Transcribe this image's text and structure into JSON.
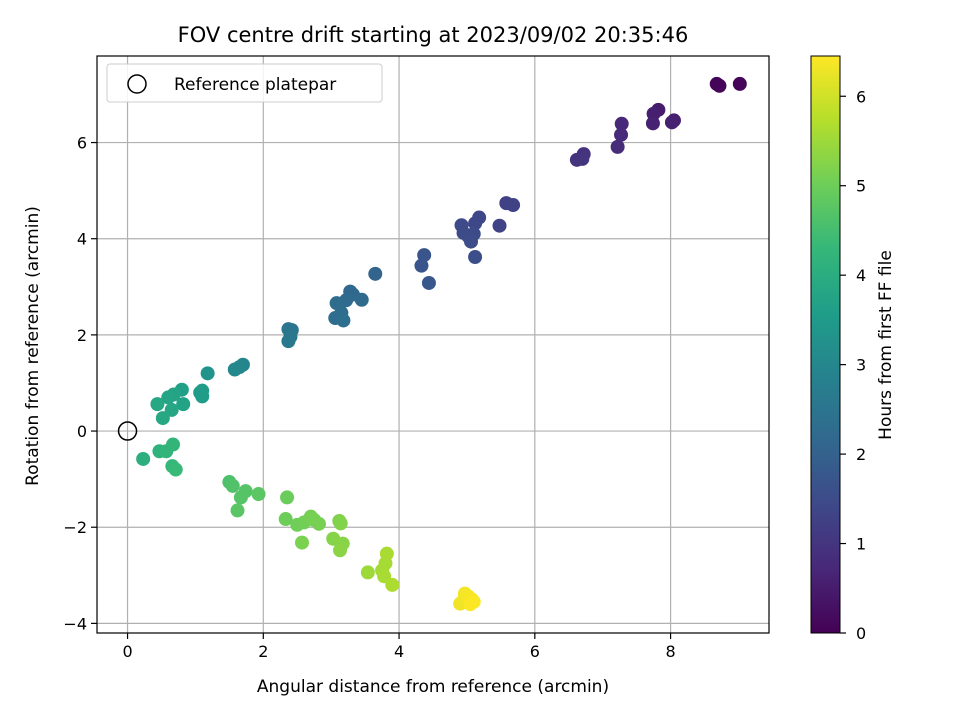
{
  "chart_data": {
    "type": "scatter",
    "title": "FOV centre drift starting at 2023/09/02 20:35:46",
    "xlabel": "Angular distance from reference (arcmin)",
    "ylabel": "Rotation from reference (arcmin)",
    "xlim": [
      -0.45,
      9.45
    ],
    "ylim": [
      -4.2,
      7.8
    ],
    "xticks": [
      0,
      2,
      4,
      6,
      8
    ],
    "yticks": [
      -4,
      -2,
      0,
      2,
      4,
      6
    ],
    "grid": true,
    "legend": {
      "label": "Reference platepar",
      "placement": "top-left"
    },
    "reference_point": {
      "x": 0,
      "y": 0
    },
    "colorbar": {
      "label": "Hours from first FF file",
      "range": [
        0,
        6.45
      ],
      "ticks": [
        0,
        1,
        2,
        3,
        4,
        5,
        6
      ],
      "colormap": "viridis",
      "stops": [
        "#440154",
        "#482878",
        "#3e4989",
        "#31688e",
        "#26828e",
        "#1f9e89",
        "#35b779",
        "#6ece58",
        "#b5de2b",
        "#fde725"
      ]
    },
    "points": [
      {
        "x": 8.68,
        "y": 7.22,
        "t": 0.05
      },
      {
        "x": 8.72,
        "y": 7.18,
        "t": 0.08
      },
      {
        "x": 9.02,
        "y": 7.22,
        "t": 0.1
      },
      {
        "x": 7.82,
        "y": 6.68,
        "t": 0.5
      },
      {
        "x": 7.75,
        "y": 6.6,
        "t": 0.55
      },
      {
        "x": 7.74,
        "y": 6.4,
        "t": 0.6
      },
      {
        "x": 8.05,
        "y": 6.46,
        "t": 0.55
      },
      {
        "x": 8.02,
        "y": 6.42,
        "t": 0.58
      },
      {
        "x": 7.28,
        "y": 6.39,
        "t": 0.72
      },
      {
        "x": 7.27,
        "y": 6.16,
        "t": 0.78
      },
      {
        "x": 7.22,
        "y": 5.91,
        "t": 0.8
      },
      {
        "x": 6.72,
        "y": 5.76,
        "t": 0.95
      },
      {
        "x": 6.62,
        "y": 5.64,
        "t": 0.98
      },
      {
        "x": 6.7,
        "y": 5.66,
        "t": 1.0
      },
      {
        "x": 5.58,
        "y": 4.74,
        "t": 1.25
      },
      {
        "x": 5.68,
        "y": 4.7,
        "t": 1.28
      },
      {
        "x": 5.48,
        "y": 4.27,
        "t": 1.32
      },
      {
        "x": 5.18,
        "y": 4.44,
        "t": 1.38
      },
      {
        "x": 5.12,
        "y": 4.32,
        "t": 1.4
      },
      {
        "x": 4.92,
        "y": 4.28,
        "t": 1.45
      },
      {
        "x": 4.95,
        "y": 4.12,
        "t": 1.48
      },
      {
        "x": 5.02,
        "y": 4.05,
        "t": 1.5
      },
      {
        "x": 5.1,
        "y": 4.1,
        "t": 1.5
      },
      {
        "x": 5.06,
        "y": 3.94,
        "t": 1.52
      },
      {
        "x": 5.12,
        "y": 3.62,
        "t": 1.55
      },
      {
        "x": 4.37,
        "y": 3.66,
        "t": 1.7
      },
      {
        "x": 4.33,
        "y": 3.44,
        "t": 1.72
      },
      {
        "x": 4.44,
        "y": 3.08,
        "t": 1.78
      },
      {
        "x": 3.65,
        "y": 3.27,
        "t": 2.05
      },
      {
        "x": 3.28,
        "y": 2.9,
        "t": 2.15
      },
      {
        "x": 3.32,
        "y": 2.84,
        "t": 2.18
      },
      {
        "x": 3.22,
        "y": 2.72,
        "t": 2.2
      },
      {
        "x": 3.45,
        "y": 2.73,
        "t": 2.22
      },
      {
        "x": 3.08,
        "y": 2.66,
        "t": 2.25
      },
      {
        "x": 3.15,
        "y": 2.46,
        "t": 2.28
      },
      {
        "x": 3.06,
        "y": 2.35,
        "t": 2.3
      },
      {
        "x": 3.18,
        "y": 2.3,
        "t": 2.32
      },
      {
        "x": 2.37,
        "y": 2.12,
        "t": 2.5
      },
      {
        "x": 2.42,
        "y": 2.1,
        "t": 2.52
      },
      {
        "x": 2.4,
        "y": 1.96,
        "t": 2.55
      },
      {
        "x": 2.37,
        "y": 1.87,
        "t": 2.58
      },
      {
        "x": 1.7,
        "y": 1.38,
        "t": 2.95
      },
      {
        "x": 1.65,
        "y": 1.33,
        "t": 2.98
      },
      {
        "x": 1.58,
        "y": 1.28,
        "t": 3.02
      },
      {
        "x": 1.18,
        "y": 1.2,
        "t": 3.3
      },
      {
        "x": 1.07,
        "y": 0.8,
        "t": 3.5
      },
      {
        "x": 1.1,
        "y": 0.84,
        "t": 3.52
      },
      {
        "x": 1.1,
        "y": 0.72,
        "t": 3.55
      },
      {
        "x": 0.8,
        "y": 0.86,
        "t": 3.65
      },
      {
        "x": 0.82,
        "y": 0.56,
        "t": 3.72
      },
      {
        "x": 0.68,
        "y": 0.76,
        "t": 3.75
      },
      {
        "x": 0.6,
        "y": 0.7,
        "t": 3.78
      },
      {
        "x": 0.65,
        "y": 0.44,
        "t": 3.82
      },
      {
        "x": 0.44,
        "y": 0.56,
        "t": 3.85
      },
      {
        "x": 0.52,
        "y": 0.27,
        "t": 3.88
      },
      {
        "x": 0.23,
        "y": -0.58,
        "t": 4.05
      },
      {
        "x": 0.47,
        "y": -0.42,
        "t": 4.15
      },
      {
        "x": 0.57,
        "y": -0.42,
        "t": 4.2
      },
      {
        "x": 0.67,
        "y": -0.28,
        "t": 4.25
      },
      {
        "x": 0.66,
        "y": -0.73,
        "t": 4.3
      },
      {
        "x": 0.71,
        "y": -0.8,
        "t": 4.35
      },
      {
        "x": 1.5,
        "y": -1.06,
        "t": 4.6
      },
      {
        "x": 1.55,
        "y": -1.14,
        "t": 4.65
      },
      {
        "x": 1.74,
        "y": -1.25,
        "t": 4.7
      },
      {
        "x": 1.67,
        "y": -1.38,
        "t": 4.72
      },
      {
        "x": 1.62,
        "y": -1.65,
        "t": 4.75
      },
      {
        "x": 1.93,
        "y": -1.31,
        "t": 4.78
      },
      {
        "x": 2.35,
        "y": -1.38,
        "t": 4.95
      },
      {
        "x": 2.33,
        "y": -1.83,
        "t": 5.0
      },
      {
        "x": 2.5,
        "y": -1.95,
        "t": 5.02
      },
      {
        "x": 2.6,
        "y": -1.9,
        "t": 5.05
      },
      {
        "x": 2.7,
        "y": -1.78,
        "t": 5.08
      },
      {
        "x": 2.75,
        "y": -1.85,
        "t": 5.1
      },
      {
        "x": 2.82,
        "y": -1.93,
        "t": 5.12
      },
      {
        "x": 2.57,
        "y": -2.32,
        "t": 5.15
      },
      {
        "x": 3.12,
        "y": -1.87,
        "t": 5.2
      },
      {
        "x": 3.14,
        "y": -1.92,
        "t": 5.22
      },
      {
        "x": 3.03,
        "y": -2.24,
        "t": 5.25
      },
      {
        "x": 3.17,
        "y": -2.34,
        "t": 5.28
      },
      {
        "x": 3.13,
        "y": -2.48,
        "t": 5.3
      },
      {
        "x": 3.54,
        "y": -2.94,
        "t": 5.5
      },
      {
        "x": 3.75,
        "y": -2.9,
        "t": 5.55
      },
      {
        "x": 3.8,
        "y": -2.75,
        "t": 5.58
      },
      {
        "x": 3.78,
        "y": -3.02,
        "t": 5.6
      },
      {
        "x": 3.82,
        "y": -2.55,
        "t": 5.62
      },
      {
        "x": 3.9,
        "y": -3.2,
        "t": 5.65
      },
      {
        "x": 4.9,
        "y": -3.59,
        "t": 6.3
      },
      {
        "x": 4.95,
        "y": -3.52,
        "t": 6.32
      },
      {
        "x": 4.97,
        "y": -3.38,
        "t": 6.35
      },
      {
        "x": 5.02,
        "y": -3.44,
        "t": 6.38
      },
      {
        "x": 5.07,
        "y": -3.5,
        "t": 6.4
      },
      {
        "x": 5.1,
        "y": -3.55,
        "t": 6.42
      },
      {
        "x": 5.05,
        "y": -3.6,
        "t": 6.44
      }
    ]
  }
}
